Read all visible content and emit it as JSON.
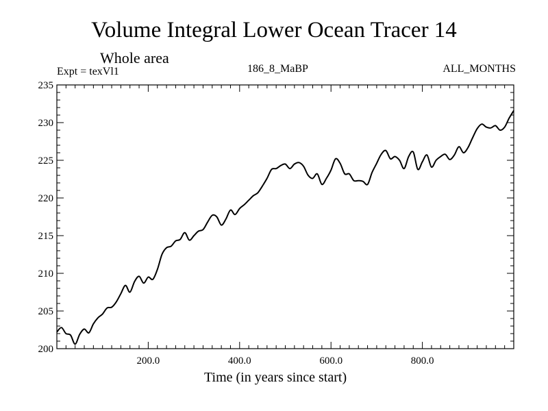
{
  "chart_data": {
    "type": "line",
    "title": "Volume Integral Lower Ocean Tracer 14",
    "subtitle": "Whole area",
    "experiment": "Expt = texVl1",
    "run_label": "186_8_MaBP",
    "season": "ALL_MONTHS",
    "xlabel": "Time (in years since start)",
    "ylabel": "",
    "xlim": [
      0,
      1000
    ],
    "ylim": [
      200,
      235
    ],
    "xticks": [
      200,
      400,
      600,
      800
    ],
    "xtick_labels": [
      "200.0",
      "400.0",
      "600.0",
      "800.0"
    ],
    "yticks": [
      200,
      205,
      210,
      215,
      220,
      225,
      230,
      235
    ],
    "ytick_labels": [
      "200",
      "205",
      "210",
      "215",
      "220",
      "225",
      "230",
      "235"
    ],
    "grid": false,
    "series": [
      {
        "name": "Tracer 14",
        "x": [
          0,
          10,
          20,
          30,
          40,
          50,
          60,
          70,
          80,
          90,
          100,
          110,
          120,
          130,
          140,
          150,
          160,
          170,
          180,
          190,
          200,
          210,
          220,
          230,
          240,
          250,
          260,
          270,
          280,
          290,
          300,
          310,
          320,
          330,
          340,
          350,
          360,
          370,
          380,
          390,
          400,
          410,
          420,
          430,
          440,
          450,
          460,
          470,
          480,
          490,
          500,
          510,
          520,
          530,
          540,
          550,
          560,
          570,
          580,
          590,
          600,
          610,
          620,
          630,
          640,
          650,
          660,
          670,
          680,
          690,
          700,
          710,
          720,
          730,
          740,
          750,
          760,
          770,
          780,
          790,
          800,
          810,
          820,
          830,
          840,
          850,
          860,
          870,
          880,
          890,
          900,
          910,
          920,
          930,
          940,
          950,
          960,
          970,
          980,
          990,
          1000
        ],
        "values": [
          202.2,
          202.8,
          202.0,
          201.8,
          200.6,
          201.9,
          202.6,
          202.1,
          203.3,
          204.1,
          204.6,
          205.4,
          205.5,
          206.2,
          207.3,
          208.4,
          207.5,
          208.9,
          209.6,
          208.7,
          209.5,
          209.2,
          210.5,
          212.5,
          213.4,
          213.6,
          214.3,
          214.5,
          215.4,
          214.4,
          215.0,
          215.6,
          215.8,
          216.8,
          217.7,
          217.5,
          216.4,
          217.2,
          218.4,
          217.8,
          218.6,
          219.1,
          219.7,
          220.3,
          220.7,
          221.6,
          222.6,
          223.8,
          223.9,
          224.3,
          224.5,
          223.9,
          224.5,
          224.7,
          224.2,
          223.0,
          222.6,
          223.2,
          221.8,
          222.6,
          223.7,
          225.2,
          224.6,
          223.2,
          223.2,
          222.3,
          222.3,
          222.2,
          221.8,
          223.4,
          224.6,
          225.8,
          226.3,
          225.2,
          225.5,
          225.0,
          223.9,
          225.5,
          226.1,
          223.8,
          224.8,
          225.7,
          224.1,
          225.0,
          225.5,
          225.8,
          225.1,
          225.7,
          226.8,
          226.0,
          226.7,
          228.0,
          229.2,
          229.8,
          229.4,
          229.3,
          229.6,
          229.0,
          229.4,
          230.6,
          231.6
        ]
      }
    ]
  }
}
